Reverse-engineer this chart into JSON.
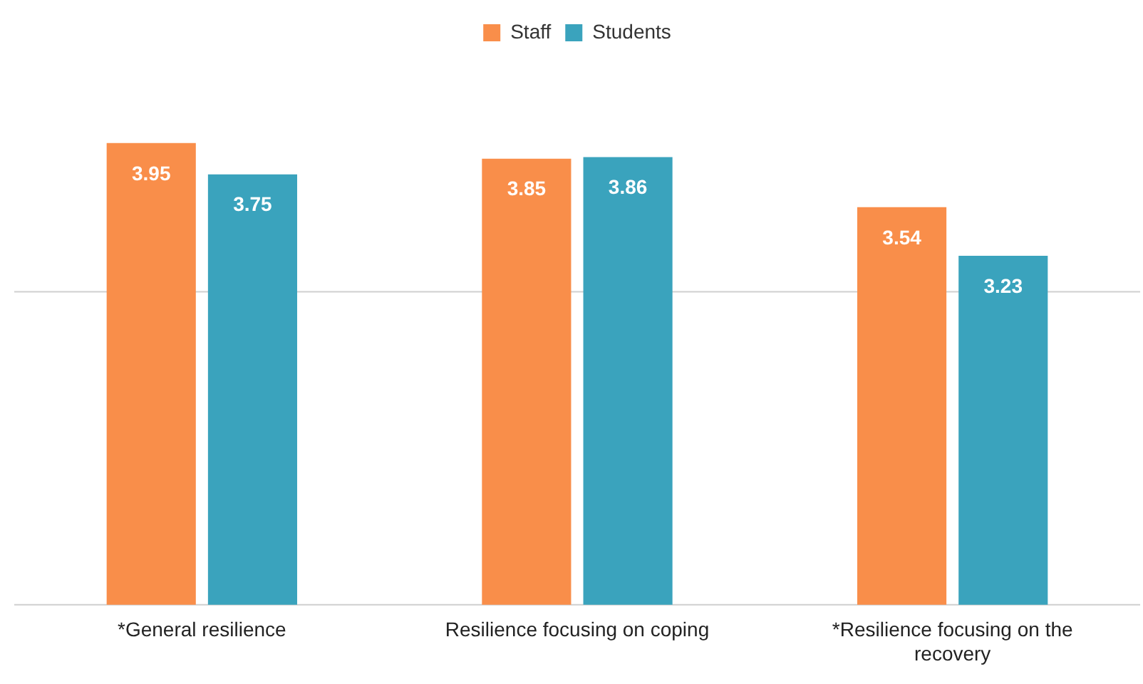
{
  "chart_data": {
    "type": "bar",
    "categories": [
      "*General resilience",
      "Resilience focusing on coping",
      "*Resilience focusing on the recovery"
    ],
    "series": [
      {
        "name": "Staff",
        "color": "#f98e4a",
        "values": [
          3.95,
          3.85,
          3.54
        ]
      },
      {
        "name": "Students",
        "color": "#3aa3bd",
        "values": [
          3.75,
          3.86,
          3.23
        ]
      }
    ],
    "ref_lines": [
      {
        "axis": "y",
        "value": 1,
        "color": "#cfcfcf"
      },
      {
        "axis": "y",
        "value": 3,
        "color": "#cfcfcf"
      }
    ],
    "tick_labels": "x",
    "legend": "top",
    "data_labels": true
  }
}
